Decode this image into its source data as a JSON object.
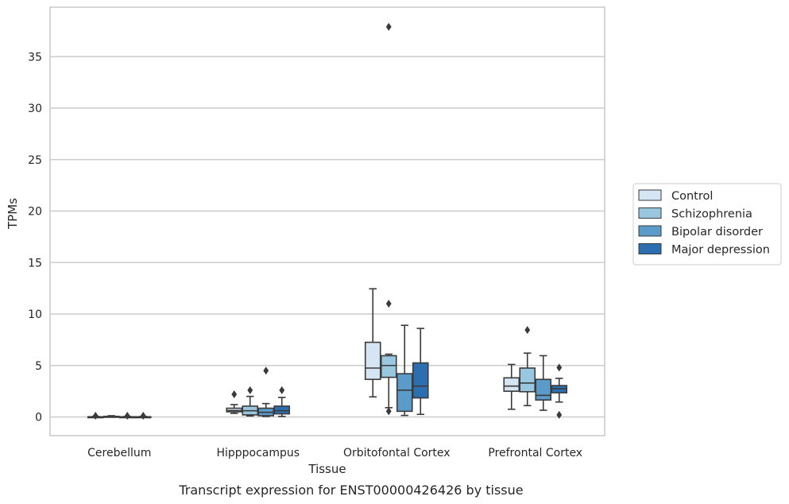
{
  "chart_data": {
    "type": "box",
    "xlabel": "Tissue",
    "ylabel": "TPMs",
    "caption": "Transcript expression for ENST00000426426 by tissue",
    "ylim": [
      -1.8,
      39.5
    ],
    "yticks": [
      0,
      5,
      10,
      15,
      20,
      25,
      30,
      35
    ],
    "grid": "horizontal",
    "legend_position": "right",
    "categories": [
      "Cerebellum",
      "Hipppocampus",
      "Orbitofontal Cortex",
      "Prefrontal Cortex"
    ],
    "series": [
      {
        "name": "Control",
        "color": "#d6e5f3",
        "boxes": [
          {
            "whislo": 0.0,
            "q1": 0.0,
            "med": 0.0,
            "q3": 0.02,
            "whishi": 0.05,
            "fliers": [
              0.12
            ]
          },
          {
            "whislo": 0.35,
            "q1": 0.5,
            "med": 0.62,
            "q3": 0.85,
            "whishi": 1.2,
            "fliers": [
              2.2
            ]
          },
          {
            "whislo": 1.95,
            "q1": 3.65,
            "med": 4.75,
            "q3": 7.25,
            "whishi": 12.45,
            "fliers": []
          },
          {
            "whislo": 0.75,
            "q1": 2.5,
            "med": 3.0,
            "q3": 3.8,
            "whishi": 5.1,
            "fliers": []
          }
        ]
      },
      {
        "name": "Schizophrenia",
        "color": "#9ac7e0",
        "boxes": [
          {
            "whislo": 0.0,
            "q1": 0.02,
            "med": 0.03,
            "q3": 0.06,
            "whishi": 0.12,
            "fliers": []
          },
          {
            "whislo": 0.1,
            "q1": 0.2,
            "med": 0.6,
            "q3": 1.05,
            "whishi": 2.0,
            "fliers": [
              2.6
            ]
          },
          {
            "whislo": 0.9,
            "q1": 3.85,
            "med": 5.0,
            "q3": 5.95,
            "whishi": 6.1,
            "fliers": [
              11.0,
              0.55,
              37.9
            ]
          },
          {
            "whislo": 1.1,
            "q1": 2.45,
            "med": 3.3,
            "q3": 4.75,
            "whishi": 6.2,
            "fliers": [
              8.45
            ]
          }
        ]
      },
      {
        "name": "Bipolar disorder",
        "color": "#5a9bc9",
        "boxes": [
          {
            "whislo": 0.0,
            "q1": 0.0,
            "med": 0.01,
            "q3": 0.02,
            "whishi": 0.05,
            "fliers": [
              0.12
            ]
          },
          {
            "whislo": 0.05,
            "q1": 0.12,
            "med": 0.45,
            "q3": 0.85,
            "whishi": 1.3,
            "fliers": [
              4.5
            ]
          },
          {
            "whislo": 0.15,
            "q1": 0.55,
            "med": 2.6,
            "q3": 4.2,
            "whishi": 8.9,
            "fliers": []
          },
          {
            "whislo": 0.65,
            "q1": 1.65,
            "med": 2.1,
            "q3": 3.65,
            "whishi": 5.95,
            "fliers": []
          }
        ]
      },
      {
        "name": "Major depression",
        "color": "#2d6eb0",
        "boxes": [
          {
            "whislo": 0.0,
            "q1": 0.0,
            "med": 0.01,
            "q3": 0.02,
            "whishi": 0.05,
            "fliers": [
              0.12
            ]
          },
          {
            "whislo": 0.05,
            "q1": 0.3,
            "med": 0.6,
            "q3": 1.05,
            "whishi": 1.9,
            "fliers": [
              2.6
            ]
          },
          {
            "whislo": 0.25,
            "q1": 1.85,
            "med": 3.0,
            "q3": 5.25,
            "whishi": 8.6,
            "fliers": []
          },
          {
            "whislo": 1.45,
            "q1": 2.35,
            "med": 2.75,
            "q3": 3.05,
            "whishi": 3.75,
            "fliers": [
              4.8,
              0.2
            ]
          }
        ]
      }
    ]
  }
}
